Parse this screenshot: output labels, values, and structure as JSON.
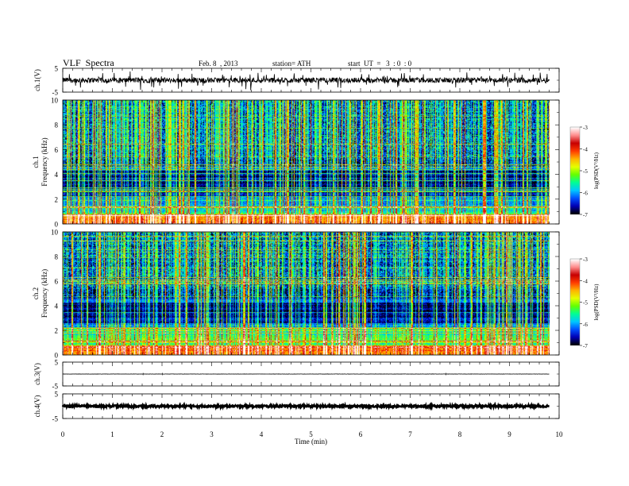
{
  "header": {
    "title": "VLF  Spectra",
    "date": "Feb. 8  , 2013",
    "station": "station= ATH",
    "start_ut": "start  UT  =   3  : 0  : 0"
  },
  "colors": {
    "colormap": [
      "#000000",
      "#0000b4",
      "#0050ff",
      "#00c8ff",
      "#00ff96",
      "#64ff00",
      "#e6ff00",
      "#ffb400",
      "#ff3c00",
      "#c80000",
      "#ff8c8c",
      "#ffffff"
    ]
  },
  "chart_data": [
    {
      "type": "line",
      "name": "ch1-waveform",
      "ylabel": "ch.1(V)",
      "ylim": [
        -5,
        5
      ],
      "yticks": [
        "5",
        "-5"
      ],
      "xlim": [
        0,
        10
      ],
      "x_range_data": [
        0,
        9.8
      ],
      "baseline": 0,
      "noise_amplitude": 1.1
    },
    {
      "type": "heatmap",
      "name": "ch1-spectrogram",
      "ylabel": "ch.1\nFrequency  (kHz)",
      "ylim": [
        0,
        10
      ],
      "yticks": [
        "0",
        "2",
        "4",
        "6",
        "8",
        "10"
      ],
      "xlim": [
        0,
        10
      ],
      "x_range_data": [
        0,
        9.8
      ],
      "colorbar": {
        "label": "log(PSD(V²/Hz)",
        "range": [
          -7,
          -3
        ],
        "ticks": [
          "-3",
          "-4",
          "-5",
          "-6",
          "-7"
        ]
      }
    },
    {
      "type": "heatmap",
      "name": "ch2-spectrogram",
      "ylabel": "ch.2\nFrequency  (kHz)",
      "ylim": [
        0,
        10
      ],
      "yticks": [
        "0",
        "2",
        "4",
        "6",
        "8",
        "10"
      ],
      "xlim": [
        0,
        10
      ],
      "x_range_data": [
        0,
        9.8
      ],
      "colorbar": {
        "label": "log(PSD(V²/Hz)",
        "range": [
          -7,
          -3
        ],
        "ticks": [
          "-3",
          "-4",
          "-5",
          "-6",
          "-7"
        ]
      }
    },
    {
      "type": "line",
      "name": "ch3-waveform",
      "ylabel": "ch.3(V)",
      "ylim": [
        -5,
        5
      ],
      "yticks": [
        "5",
        "-5"
      ],
      "xlim": [
        0,
        10
      ],
      "x_range_data": [
        0,
        9.8
      ],
      "baseline": 0,
      "noise_amplitude": 0.05
    },
    {
      "type": "line",
      "name": "ch4-waveform",
      "ylabel": "ch.4(V)",
      "ylim": [
        -5,
        5
      ],
      "yticks": [
        "5",
        "-5"
      ],
      "xlim": [
        0,
        10
      ],
      "x_range_data": [
        0,
        9.8
      ],
      "baseline": 0,
      "noise_amplitude": 0.4
    }
  ],
  "xaxis": {
    "label": "Time  (min)",
    "ticks": [
      "0",
      "1",
      "2",
      "3",
      "4",
      "5",
      "6",
      "7",
      "8",
      "9",
      "10"
    ]
  }
}
